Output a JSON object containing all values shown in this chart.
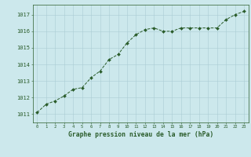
{
  "x": [
    0,
    1,
    2,
    3,
    4,
    5,
    6,
    7,
    8,
    9,
    10,
    11,
    12,
    13,
    14,
    15,
    16,
    17,
    18,
    19,
    20,
    21,
    22,
    23
  ],
  "y": [
    1011.1,
    1011.6,
    1011.8,
    1012.1,
    1012.5,
    1012.6,
    1013.2,
    1013.6,
    1014.3,
    1014.6,
    1015.3,
    1015.8,
    1016.1,
    1016.2,
    1016.0,
    1016.0,
    1016.2,
    1016.2,
    1016.2,
    1016.2,
    1016.2,
    1016.7,
    1017.0,
    1017.2
  ],
  "line_color": "#2a5c2a",
  "marker": "D",
  "marker_size": 2.0,
  "bg_color": "#cce8ec",
  "grid_color": "#aacdd4",
  "xlabel": "Graphe pression niveau de la mer (hPa)",
  "xlabel_color": "#2a5c2a",
  "tick_color": "#2a5c2a",
  "ylim": [
    1010.5,
    1017.6
  ],
  "xlim": [
    -0.5,
    23.5
  ],
  "yticks": [
    1011,
    1012,
    1013,
    1014,
    1015,
    1016,
    1017
  ],
  "xticks": [
    0,
    1,
    2,
    3,
    4,
    5,
    6,
    7,
    8,
    9,
    10,
    11,
    12,
    13,
    14,
    15,
    16,
    17,
    18,
    19,
    20,
    21,
    22,
    23
  ],
  "xtick_labels": [
    "0",
    "1",
    "2",
    "3",
    "4",
    "5",
    "6",
    "7",
    "8",
    "9",
    "10",
    "11",
    "12",
    "13",
    "14",
    "15",
    "16",
    "17",
    "18",
    "19",
    "20",
    "21",
    "22",
    "23"
  ]
}
